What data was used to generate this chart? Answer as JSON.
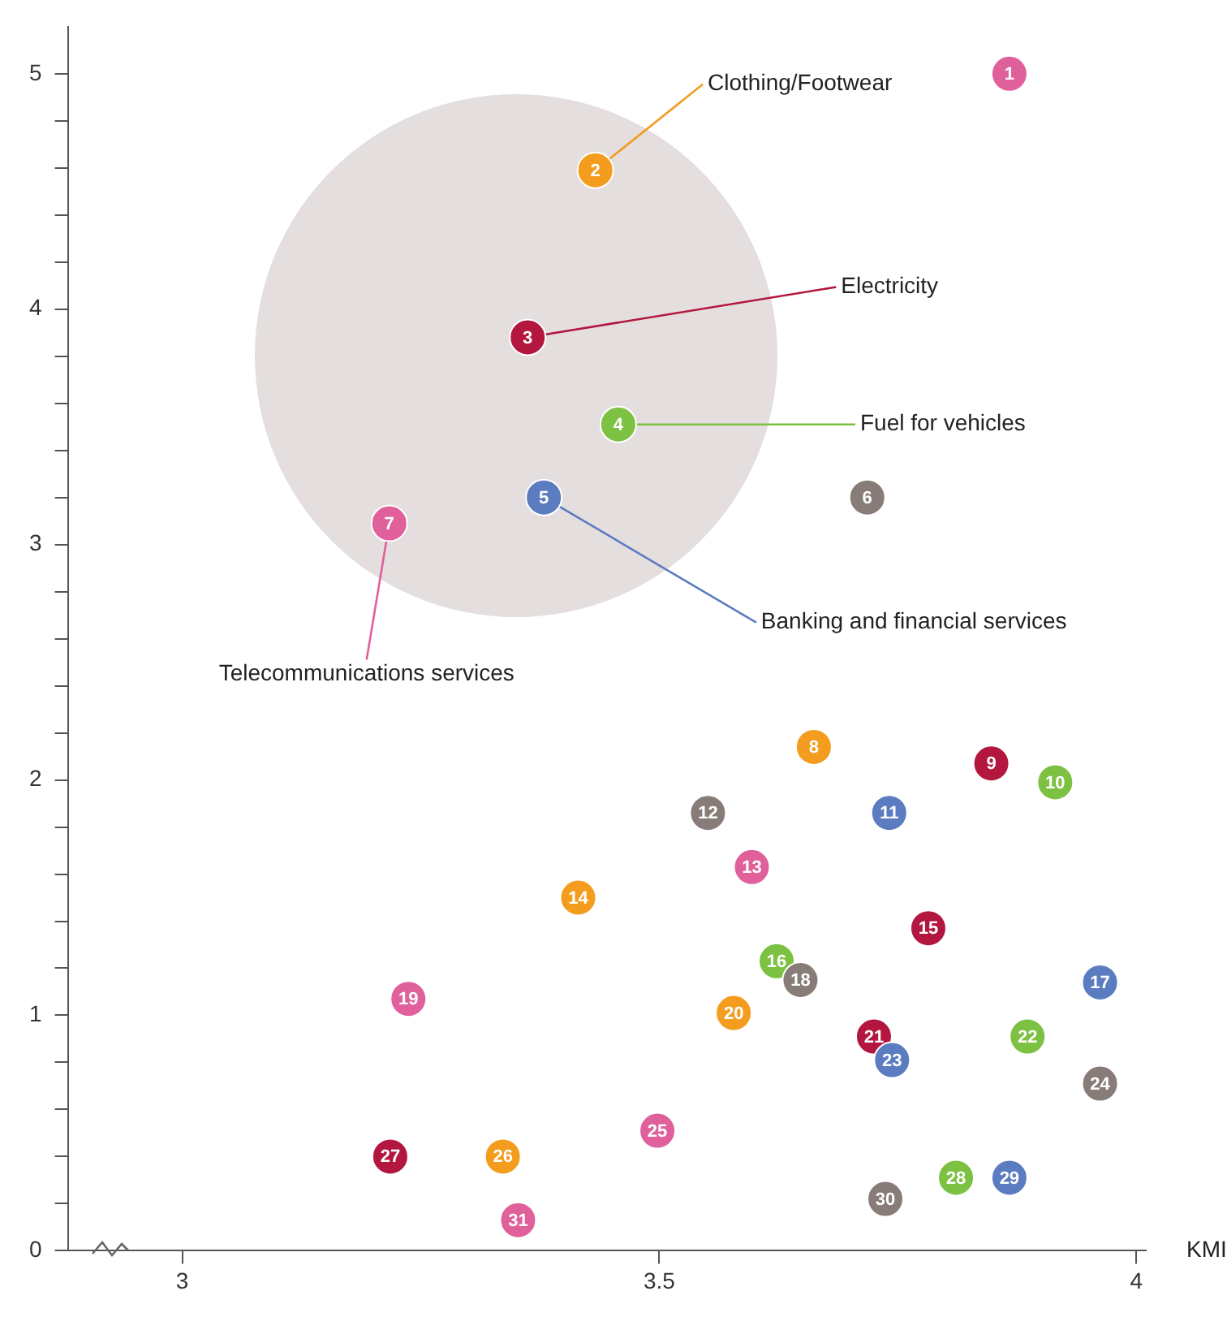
{
  "chart_data": {
    "type": "scatter",
    "xlabel": "KMI",
    "xlim": [
      2.88,
      4.01
    ],
    "xticks": [
      3,
      3.5,
      4
    ],
    "ylim": [
      0,
      5.2
    ],
    "yticks": [
      0,
      {
        "value": 0.2,
        "label": null
      },
      {
        "value": 0.4,
        "label": null
      },
      {
        "value": 0.6,
        "label": null
      },
      {
        "value": 0.8,
        "label": null
      },
      1,
      {
        "value": 1.2,
        "label": null
      },
      {
        "value": 1.4,
        "label": null
      },
      {
        "value": 1.6,
        "label": null
      },
      {
        "value": 1.8,
        "label": null
      },
      2,
      {
        "value": 2.2,
        "label": null
      },
      {
        "value": 2.4,
        "label": null
      },
      {
        "value": 2.6,
        "label": null
      },
      {
        "value": 2.8,
        "label": null
      },
      3,
      {
        "value": 3.2,
        "label": null
      },
      {
        "value": 3.4,
        "label": null
      },
      {
        "value": 3.6,
        "label": null
      },
      {
        "value": 3.8,
        "label": null
      },
      4,
      {
        "value": 4.2,
        "label": null
      },
      {
        "value": 4.4,
        "label": null
      },
      {
        "value": 4.6,
        "label": null
      },
      {
        "value": 4.8,
        "label": null
      },
      5
    ],
    "grid": false,
    "legend": false,
    "marker": "circle",
    "series": [
      {
        "type": "scatter",
        "x": [
          3.867,
          3.433,
          3.362,
          3.457,
          3.379,
          3.718,
          3.217,
          3.662,
          3.848,
          3.915,
          3.741,
          3.551,
          3.597,
          3.415,
          3.782,
          3.623,
          3.962,
          3.648,
          3.237,
          3.578,
          3.725,
          3.886,
          3.744,
          3.962,
          3.498,
          3.336,
          3.218,
          3.811,
          3.867,
          3.737,
          3.352
        ],
        "values": [
          5.0,
          4.59,
          3.88,
          3.51,
          3.2,
          3.2,
          3.09,
          2.14,
          2.07,
          1.99,
          1.86,
          1.86,
          1.63,
          1.5,
          1.37,
          1.23,
          1.14,
          1.15,
          1.07,
          1.01,
          0.91,
          0.91,
          0.81,
          0.71,
          0.51,
          0.4,
          0.4,
          0.31,
          0.31,
          0.22,
          0.13
        ],
        "colors": [
          "#e0609c",
          "#f39c1e",
          "#b3173f",
          "#7cc142",
          "#5b7cc0",
          "#877c77",
          "#e0609c",
          "#f39c1e",
          "#b3173f",
          "#7cc142",
          "#5b7cc0",
          "#877c77",
          "#e0609c",
          "#f39c1e",
          "#b3173f",
          "#7cc142",
          "#5b7cc0",
          "#877c77",
          "#e0609c",
          "#f39c1e",
          "#b3173f",
          "#7cc142",
          "#5b7cc0",
          "#877c77",
          "#e0609c",
          "#f39c1e",
          "#b3173f",
          "#7cc142",
          "#5b7cc0",
          "#877c77",
          "#e0609c"
        ]
      }
    ],
    "annotations": [
      {
        "text": "Clothing/Footwear",
        "x": 3.433,
        "y": 4.59
      },
      {
        "text": "Electricity",
        "x": 3.362,
        "y": 3.88
      },
      {
        "text": "Fuel for vehicles",
        "x": 3.457,
        "y": 3.51
      },
      {
        "text": "Banking and financial services",
        "x": 3.379,
        "y": 3.2
      },
      {
        "text": "Telecommunications services",
        "x": 3.217,
        "y": 3.09
      },
      {
        "text": "1",
        "x": 3.867,
        "y": 5.0
      },
      {
        "text": "2",
        "x": 3.433,
        "y": 4.59
      },
      {
        "text": "3",
        "x": 3.362,
        "y": 3.88
      },
      {
        "text": "4",
        "x": 3.457,
        "y": 3.51
      },
      {
        "text": "5",
        "x": 3.379,
        "y": 3.2
      },
      {
        "text": "6",
        "x": 3.718,
        "y": 3.2
      },
      {
        "text": "7",
        "x": 3.217,
        "y": 3.09
      },
      {
        "text": "8",
        "x": 3.662,
        "y": 2.14
      },
      {
        "text": "9",
        "x": 3.848,
        "y": 2.07
      },
      {
        "text": "10",
        "x": 3.915,
        "y": 1.99
      },
      {
        "text": "11",
        "x": 3.741,
        "y": 1.86
      },
      {
        "text": "12",
        "x": 3.551,
        "y": 1.86
      },
      {
        "text": "13",
        "x": 3.597,
        "y": 1.63
      },
      {
        "text": "14",
        "x": 3.415,
        "y": 1.5
      },
      {
        "text": "15",
        "x": 3.782,
        "y": 1.37
      },
      {
        "text": "16",
        "x": 3.623,
        "y": 1.23
      },
      {
        "text": "17",
        "x": 3.962,
        "y": 1.14
      },
      {
        "text": "18",
        "x": 3.648,
        "y": 1.15
      },
      {
        "text": "19",
        "x": 3.237,
        "y": 1.07
      },
      {
        "text": "20",
        "x": 3.578,
        "y": 1.01
      },
      {
        "text": "21",
        "x": 3.725,
        "y": 0.91
      },
      {
        "text": "22",
        "x": 3.886,
        "y": 0.91
      },
      {
        "text": "23",
        "x": 3.744,
        "y": 0.81
      },
      {
        "text": "24",
        "x": 3.962,
        "y": 0.71
      },
      {
        "text": "25",
        "x": 3.498,
        "y": 0.51
      },
      {
        "text": "26",
        "x": 3.336,
        "y": 0.4
      },
      {
        "text": "27",
        "x": 3.218,
        "y": 0.4
      },
      {
        "text": "28",
        "x": 3.811,
        "y": 0.31
      },
      {
        "text": "29",
        "x": 3.867,
        "y": 0.31
      },
      {
        "text": "30",
        "x": 3.737,
        "y": 0.22
      },
      {
        "text": "31",
        "x": 3.352,
        "y": 0.13
      }
    ]
  }
}
